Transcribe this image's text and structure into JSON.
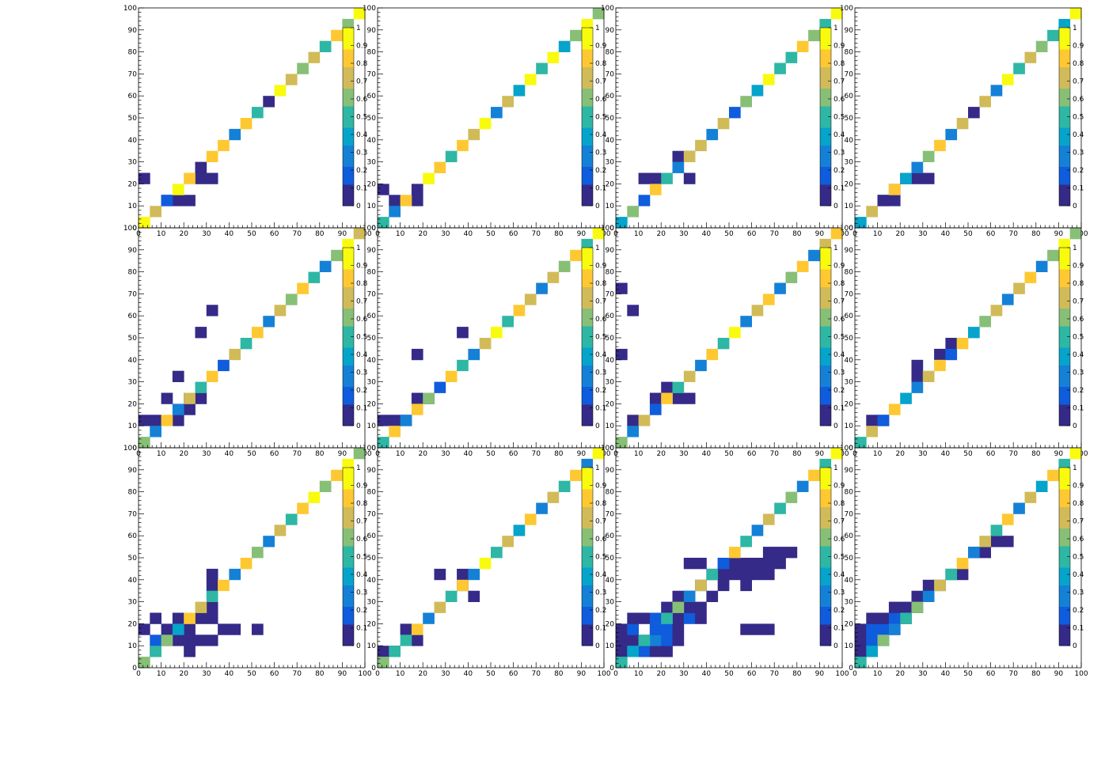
{
  "chart_data": {
    "type": "heatmap",
    "layout": {
      "rows": 3,
      "cols": 4
    },
    "grid": false,
    "x_ticks": [
      "0",
      "10",
      "20",
      "30",
      "40",
      "50",
      "60",
      "70",
      "80",
      "90",
      "100"
    ],
    "y_ticks": [
      "0",
      "10",
      "20",
      "30",
      "40",
      "50",
      "60",
      "70",
      "80",
      "90",
      "100"
    ],
    "z_ticks": [
      "0",
      "0.1",
      "0.2",
      "0.3",
      "0.4",
      "0.5",
      "0.6",
      "0.7",
      "0.8",
      "0.9",
      "1"
    ],
    "xlim": [
      0,
      100
    ],
    "ylim": [
      0,
      100
    ],
    "zlim": [
      0,
      1
    ],
    "bin_width": 5,
    "palette": [
      "#352a87",
      "#0f5cdd",
      "#1481d6",
      "#06a4ca",
      "#2eb7a4",
      "#87bf77",
      "#d1bb59",
      "#fec832",
      "#f9fb0e"
    ],
    "panels": [
      {
        "diag": [
          0.9,
          0.7,
          0.2,
          0.9,
          0.8,
          0.1,
          0.8,
          0.8,
          0.3,
          0.8,
          0.5,
          0.1,
          0.9,
          0.7,
          0.6,
          0.7,
          0.5,
          0.8,
          0.6,
          0.9
        ],
        "extra": [
          [
            0,
            20,
            0.05
          ],
          [
            2,
            10,
            0.1
          ],
          [
            3,
            10,
            0.05
          ],
          [
            5,
            20,
            0.05
          ],
          [
            6,
            20,
            0.05
          ],
          [
            4,
            10,
            0.1
          ]
        ]
      },
      {
        "diag": [
          0.5,
          0.3,
          0.8,
          0.1,
          0.9,
          0.8,
          0.5,
          0.8,
          0.7,
          0.9,
          0.3,
          0.7,
          0.4,
          0.9,
          0.5,
          0.9,
          0.4,
          0.6,
          0.9,
          0.6
        ],
        "extra": [
          [
            0,
            15,
            0.05
          ],
          [
            1,
            10,
            0.1
          ],
          [
            3,
            10,
            0.05
          ]
        ]
      },
      {
        "diag": [
          0.4,
          0.6,
          0.2,
          0.8,
          0.5,
          0.3,
          0.7,
          0.7,
          0.3,
          0.7,
          0.2,
          0.6,
          0.4,
          0.9,
          0.5,
          0.5,
          0.8,
          0.6,
          0.5,
          1.0
        ],
        "extra": [
          [
            2,
            20,
            0.05
          ],
          [
            3,
            20,
            0.05
          ],
          [
            5,
            30,
            0.05
          ],
          [
            6,
            30,
            0.05
          ],
          [
            6,
            20,
            0.1
          ]
        ]
      },
      {
        "diag": [
          0.4,
          0.7,
          0.1,
          0.8,
          0.4,
          0.3,
          0.6,
          0.8,
          0.3,
          0.7,
          0.1,
          0.7,
          0.3,
          0.9,
          0.5,
          0.7,
          0.6,
          0.5,
          0.4,
          1.0
        ],
        "extra": [
          [
            2,
            10,
            0.05
          ],
          [
            3,
            10,
            0.1
          ],
          [
            3,
            15,
            0.05
          ],
          [
            4,
            20,
            0.05
          ],
          [
            5,
            20,
            0.05
          ],
          [
            6,
            20,
            0.05
          ]
        ]
      },
      {
        "diag": [
          0.6,
          0.3,
          0.8,
          0.3,
          0.7,
          0.5,
          0.8,
          0.2,
          0.7,
          0.5,
          0.8,
          0.3,
          0.7,
          0.6,
          0.8,
          0.5,
          0.3,
          0.6,
          1.0,
          0.7
        ],
        "extra": [
          [
            0,
            10,
            0.05
          ],
          [
            1,
            10,
            0.1
          ],
          [
            3,
            10,
            0.05
          ],
          [
            2,
            20,
            0.05
          ],
          [
            4,
            20,
            0.1
          ],
          [
            5,
            20,
            0.05
          ],
          [
            4,
            15,
            0.05
          ],
          [
            5,
            50,
            0.05
          ],
          [
            6,
            60,
            0.05
          ],
          [
            3,
            30,
            0.05
          ]
        ]
      },
      {
        "diag": [
          0.5,
          0.8,
          0.3,
          0.8,
          0.6,
          0.2,
          0.8,
          0.5,
          0.3,
          0.7,
          0.9,
          0.5,
          0.8,
          0.7,
          0.3,
          0.7,
          0.6,
          0.8,
          0.5,
          0.9
        ],
        "extra": [
          [
            0,
            10,
            0.05
          ],
          [
            1,
            10,
            0.1
          ],
          [
            2,
            10,
            0.05
          ],
          [
            3,
            20,
            0.05
          ],
          [
            4,
            20,
            0.05
          ],
          [
            3,
            40,
            0.05
          ],
          [
            7,
            50,
            0.05
          ]
        ]
      },
      {
        "diag": [
          0.6,
          0.3,
          0.7,
          0.2,
          0.8,
          0.5,
          0.7,
          0.3,
          0.8,
          0.5,
          0.9,
          0.3,
          0.7,
          0.8,
          0.3,
          0.6,
          0.8,
          0.3,
          0.7,
          0.8
        ],
        "extra": [
          [
            1,
            10,
            0.05
          ],
          [
            3,
            20,
            0.05
          ],
          [
            5,
            20,
            0.05
          ],
          [
            6,
            20,
            0.05
          ],
          [
            4,
            25,
            0.05
          ],
          [
            0,
            70,
            0.05
          ],
          [
            1,
            60,
            0.05
          ],
          [
            0,
            40,
            0.05
          ]
        ]
      },
      {
        "diag": [
          0.5,
          0.7,
          0.2,
          0.8,
          0.4,
          0.3,
          0.7,
          0.8,
          0.2,
          0.8,
          0.4,
          0.6,
          0.7,
          0.3,
          0.7,
          0.8,
          0.3,
          0.6,
          1.0,
          0.6
        ],
        "extra": [
          [
            1,
            10,
            0.05
          ],
          [
            2,
            10,
            0.05
          ],
          [
            5,
            30,
            0.05
          ],
          [
            5,
            35,
            0.05
          ],
          [
            7,
            40,
            0.05
          ],
          [
            8,
            45,
            0.05
          ]
        ]
      },
      {
        "diag": [
          0.6,
          0.5,
          0.6,
          0.4,
          0.8,
          0.7,
          0.5,
          0.8,
          0.3,
          0.8,
          0.6,
          0.3,
          0.7,
          0.5,
          0.8,
          0.9,
          0.6,
          0.8,
          1.0,
          0.6
        ],
        "extra": [
          [
            1,
            10,
            0.2
          ],
          [
            2,
            10,
            0.1
          ],
          [
            1,
            5,
            0.1
          ],
          [
            3,
            10,
            0.05
          ],
          [
            4,
            5,
            0.05
          ],
          [
            0,
            15,
            0.05
          ],
          [
            1,
            20,
            0.05
          ],
          [
            2,
            15,
            0.05
          ],
          [
            3,
            20,
            0.05
          ],
          [
            4,
            15,
            0.1
          ],
          [
            5,
            20,
            0.05
          ],
          [
            6,
            25,
            0.05
          ],
          [
            6,
            20,
            0.05
          ],
          [
            5,
            10,
            0.05
          ],
          [
            4,
            10,
            0.05
          ],
          [
            6,
            10,
            0.05
          ],
          [
            7,
            15,
            0.05
          ],
          [
            8,
            15,
            0.05
          ],
          [
            10,
            15,
            0.05
          ],
          [
            6,
            35,
            0.05
          ],
          [
            6,
            40,
            0.05
          ]
        ]
      },
      {
        "diag": [
          0.6,
          0.5,
          0.5,
          0.8,
          0.3,
          0.7,
          0.5,
          0.8,
          0.3,
          0.9,
          0.5,
          0.7,
          0.4,
          0.8,
          0.3,
          0.7,
          0.5,
          0.8,
          0.3,
          1.0
        ],
        "extra": [
          [
            0,
            5,
            0.05
          ],
          [
            1,
            5,
            0.05
          ],
          [
            3,
            10,
            0.05
          ],
          [
            5,
            40,
            0.05
          ],
          [
            7,
            40,
            0.05
          ],
          [
            8,
            30,
            0.05
          ],
          [
            7,
            35,
            0.05
          ],
          [
            2,
            15,
            0.05
          ]
        ]
      },
      {
        "diag": [
          0.5,
          0.4,
          0.5,
          0.2,
          0.5,
          0.6,
          0.3,
          0.7,
          0.5,
          0.2,
          0.8,
          0.5,
          0.3,
          0.7,
          0.5,
          0.6,
          0.3,
          0.8,
          0.5,
          1.0
        ],
        "extra": [
          [
            0,
            5,
            0.1
          ],
          [
            1,
            5,
            0.15
          ],
          [
            2,
            5,
            0.15
          ],
          [
            3,
            5,
            0.1
          ],
          [
            4,
            5,
            0.05
          ],
          [
            0,
            10,
            0.05
          ],
          [
            1,
            10,
            0.05
          ],
          [
            2,
            10,
            0.2
          ],
          [
            3,
            10,
            0.3
          ],
          [
            4,
            10,
            0.15
          ],
          [
            5,
            10,
            0.1
          ],
          [
            0,
            15,
            0.1
          ],
          [
            1,
            15,
            0.2
          ],
          [
            3,
            15,
            0.15
          ],
          [
            4,
            15,
            0.2
          ],
          [
            5,
            15,
            0.1
          ],
          [
            1,
            20,
            0.05
          ],
          [
            2,
            20,
            0.1
          ],
          [
            3,
            20,
            0.2
          ],
          [
            5,
            20,
            0.05
          ],
          [
            6,
            20,
            0.15
          ],
          [
            7,
            20,
            0.1
          ],
          [
            4,
            25,
            0.05
          ],
          [
            6,
            25,
            0.1
          ],
          [
            7,
            25,
            0.05
          ],
          [
            5,
            30,
            0.05
          ],
          [
            6,
            30,
            0.1
          ],
          [
            8,
            30,
            0.05
          ],
          [
            7,
            35,
            0.1
          ],
          [
            9,
            35,
            0.05
          ],
          [
            11,
            35,
            0.05
          ],
          [
            6,
            45,
            0.05
          ],
          [
            7,
            45,
            0.05
          ],
          [
            11,
            15,
            0.05
          ],
          [
            12,
            15,
            0.05
          ],
          [
            13,
            15,
            0.05
          ],
          [
            8,
            40,
            0.05
          ],
          [
            9,
            40,
            0.05
          ],
          [
            10,
            40,
            0.05
          ],
          [
            11,
            40,
            0.05
          ],
          [
            12,
            40,
            0.05
          ],
          [
            13,
            40,
            0.05
          ],
          [
            9,
            45,
            0.05
          ],
          [
            10,
            45,
            0.05
          ],
          [
            11,
            45,
            0.05
          ],
          [
            12,
            45,
            0.05
          ],
          [
            13,
            45,
            0.05
          ],
          [
            14,
            45,
            0.05
          ],
          [
            13,
            50,
            0.05
          ],
          [
            14,
            50,
            0.05
          ],
          [
            15,
            50,
            0.05
          ]
        ]
      },
      {
        "diag": [
          0.5,
          0.4,
          0.6,
          0.3,
          0.5,
          0.6,
          0.3,
          0.7,
          0.5,
          0.8,
          0.3,
          0.7,
          0.5,
          0.8,
          0.3,
          0.7,
          0.4,
          0.8,
          0.5,
          1.0
        ],
        "extra": [
          [
            0,
            5,
            0.05
          ],
          [
            1,
            5,
            0.05
          ],
          [
            0,
            10,
            0.1
          ],
          [
            1,
            10,
            0.2
          ],
          [
            2,
            10,
            0.15
          ],
          [
            0,
            15,
            0.1
          ],
          [
            1,
            15,
            0.15
          ],
          [
            2,
            15,
            0.2
          ],
          [
            3,
            15,
            0.1
          ],
          [
            1,
            20,
            0.05
          ],
          [
            2,
            20,
            0.1
          ],
          [
            3,
            20,
            0.15
          ],
          [
            4,
            20,
            0.05
          ],
          [
            3,
            25,
            0.05
          ],
          [
            4,
            25,
            0.1
          ],
          [
            5,
            25,
            0.05
          ],
          [
            5,
            30,
            0.05
          ],
          [
            6,
            35,
            0.05
          ],
          [
            7,
            35,
            0.05
          ],
          [
            8,
            40,
            0.05
          ],
          [
            9,
            40,
            0.05
          ],
          [
            10,
            50,
            0.05
          ],
          [
            11,
            50,
            0.05
          ],
          [
            12,
            55,
            0.05
          ],
          [
            13,
            55,
            0.05
          ]
        ]
      }
    ]
  }
}
